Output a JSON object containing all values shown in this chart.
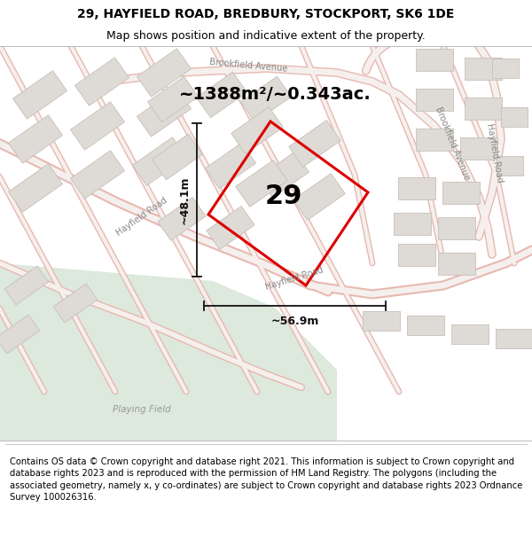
{
  "title_line1": "29, HAYFIELD ROAD, BREDBURY, STOCKPORT, SK6 1DE",
  "title_line2": "Map shows position and indicative extent of the property.",
  "footer_text": "Contains OS data © Crown copyright and database right 2021. This information is subject to Crown copyright and database rights 2023 and is reproduced with the permission of HM Land Registry. The polygons (including the associated geometry, namely x, y co-ordinates) are subject to Crown copyright and database rights 2023 Ordnance Survey 100026316.",
  "area_label": "~1388m²/~0.343ac.",
  "number_label": "29",
  "width_label": "~56.9m",
  "height_label": "~48.1m",
  "playing_field_label": "Playing Field",
  "hayfield_road_label": "Hayfield Road",
  "hayfield_road_left_label": "Hayfield Road",
  "brookfield_avenue_top_label": "Brookfield Avenue",
  "brookfield_avenue_right_label": "Brookfield Avenue",
  "hayfield_road_right_label": "Hayfield Road",
  "map_bg": "#f0eeeb",
  "playing_field_color": "#dce9dc",
  "plot_outline_color": "#dd0000",
  "road_stroke_color": "#e8b8b0",
  "road_fill_color": "#f5f0ed",
  "building_face_color": "#dedad5",
  "building_edge_color": "#c8c0b8",
  "dim_color": "#111111",
  "title_fontsize": 10,
  "subtitle_fontsize": 9,
  "footer_fontsize": 7.2,
  "map_label_fontsize": 7,
  "area_fontsize": 14,
  "number_fontsize": 22,
  "dim_fontsize": 9
}
